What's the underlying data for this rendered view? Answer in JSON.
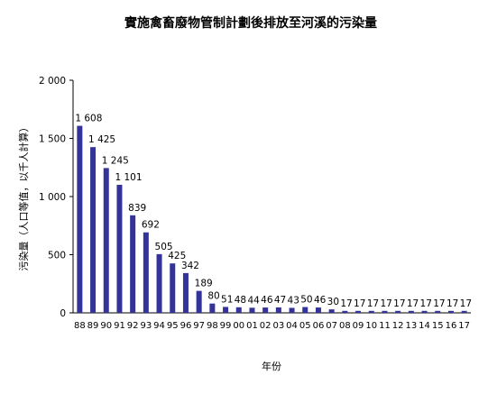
{
  "chart_data": {
    "type": "bar",
    "title": "實施禽畜廢物管制計劃後排放至河溪的污染量",
    "xlabel": "年份",
    "ylabel": "污染量（人口等值，以千人計算）",
    "ylim": [
      0,
      2000
    ],
    "yticks": [
      0,
      500,
      1000,
      1500,
      2000
    ],
    "ytick_labels": [
      "0",
      "500",
      "1 000",
      "1 500",
      "2 000"
    ],
    "grid": false,
    "bar_color": "#333399",
    "categories": [
      "88",
      "89",
      "90",
      "91",
      "92",
      "93",
      "94",
      "95",
      "96",
      "97",
      "98",
      "99",
      "00",
      "01",
      "02",
      "03",
      "04",
      "05",
      "06",
      "07",
      "08",
      "09",
      "10",
      "11",
      "12",
      "13",
      "14",
      "15",
      "16",
      "17"
    ],
    "values": [
      1608,
      1425,
      1245,
      1101,
      839,
      692,
      505,
      425,
      342,
      189,
      80,
      51,
      48,
      44,
      46,
      47,
      43,
      50,
      46,
      30,
      17,
      17,
      17,
      17,
      17,
      17,
      17,
      17,
      17,
      17
    ],
    "data_labels": [
      "1 608",
      "1 425",
      "1 245",
      "1 101",
      "839",
      "692",
      "505",
      "425",
      "342",
      "189",
      "80",
      "51",
      "48",
      "44",
      "46",
      "47",
      "43",
      "50",
      "46",
      "30",
      "17",
      "17",
      "17",
      "17",
      "17",
      "17",
      "17",
      "17",
      "17",
      "17"
    ]
  }
}
